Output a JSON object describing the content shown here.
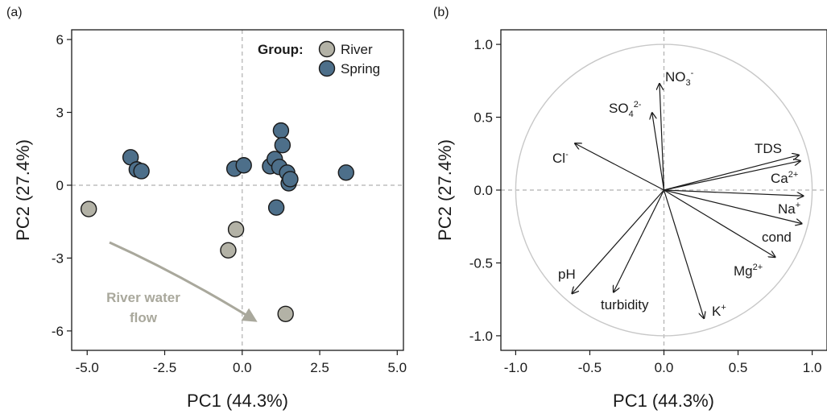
{
  "colors": {
    "river": "#b3b2a6",
    "spring": "#4d6f8a",
    "arrow_gray": "#a9a89c",
    "circle": "#c8c8c8",
    "guide": "#b0b0b0"
  },
  "chart_data": [
    {
      "type": "scatter",
      "panel": "(a)",
      "xlabel": "PC1 (44.3%)",
      "ylabel": "PC2 (27.4%)",
      "xlim": [
        -5.5,
        5.2
      ],
      "ylim": [
        -6.8,
        6.4
      ],
      "xticks": [
        -5.0,
        -2.5,
        0.0,
        2.5,
        5.0
      ],
      "xtick_labels": [
        "-5.0",
        "-2.5",
        "0.0",
        "2.5",
        "5.0"
      ],
      "yticks": [
        -6,
        -3,
        0,
        3,
        6
      ],
      "ytick_labels": [
        "-6",
        "-3",
        "0",
        "3",
        "6"
      ],
      "legend": {
        "title": "Group:",
        "position": "top-right",
        "entries": [
          "River",
          "Spring"
        ]
      },
      "series": [
        {
          "name": "River",
          "points": [
            [
              -4.95,
              -0.98
            ],
            [
              -0.2,
              -1.82
            ],
            [
              -0.45,
              -2.68
            ],
            [
              1.4,
              -5.3
            ]
          ]
        },
        {
          "name": "Spring",
          "points": [
            [
              -3.6,
              1.15
            ],
            [
              -3.4,
              0.65
            ],
            [
              -3.25,
              0.58
            ],
            [
              -0.25,
              0.68
            ],
            [
              0.05,
              0.82
            ],
            [
              0.9,
              0.78
            ],
            [
              1.05,
              1.08
            ],
            [
              1.2,
              0.75
            ],
            [
              1.25,
              2.25
            ],
            [
              1.3,
              1.65
            ],
            [
              1.45,
              0.52
            ],
            [
              1.5,
              0.08
            ],
            [
              1.55,
              0.25
            ],
            [
              1.1,
              -0.92
            ],
            [
              3.35,
              0.52
            ]
          ]
        }
      ],
      "annotation": {
        "lines": [
          "River water",
          "flow"
        ]
      }
    },
    {
      "type": "scatter",
      "panel": "(b)",
      "xlabel": "PC1 (44.3%)",
      "ylabel": "PC2 (27.4%)",
      "xlim": [
        -1.1,
        1.1
      ],
      "ylim": [
        -1.1,
        1.1
      ],
      "xticks": [
        -1.0,
        -0.5,
        0.0,
        0.5,
        1.0
      ],
      "xtick_labels": [
        "-1.0",
        "-0.5",
        "0.0",
        "0.5",
        "1.0"
      ],
      "yticks": [
        -1.0,
        -0.5,
        0.0,
        0.5,
        1.0
      ],
      "ytick_labels": [
        "-1.0",
        "-0.5",
        "0.0",
        "0.5",
        "1.0"
      ],
      "unit_circle": true,
      "vectors": [
        {
          "name": "NO3-",
          "label": "NO",
          "sub": "3",
          "sup": "-",
          "x": -0.03,
          "y": 0.73
        },
        {
          "name": "SO42-",
          "label": "SO",
          "sub": "4",
          "sup": "2-",
          "x": -0.08,
          "y": 0.53
        },
        {
          "name": "Cl-",
          "label": "Cl",
          "sub": "",
          "sup": "-",
          "x": -0.6,
          "y": 0.32
        },
        {
          "name": "TDS",
          "label": "TDS",
          "sub": "",
          "sup": "",
          "x": 0.91,
          "y": 0.24
        },
        {
          "name": "Ca2+",
          "label": "Ca",
          "sub": "",
          "sup": "2+",
          "x": 0.92,
          "y": 0.2
        },
        {
          "name": "Na+",
          "label": "Na",
          "sub": "",
          "sup": "+",
          "x": 0.94,
          "y": -0.04
        },
        {
          "name": "cond",
          "label": "cond",
          "sub": "",
          "sup": "",
          "x": 0.93,
          "y": -0.23
        },
        {
          "name": "Mg2+",
          "label": "Mg",
          "sub": "",
          "sup": "2+",
          "x": 0.75,
          "y": -0.46
        },
        {
          "name": "K+",
          "label": "K",
          "sub": "",
          "sup": "+",
          "x": 0.27,
          "y": -0.88
        },
        {
          "name": "turbidity",
          "label": "turbidity",
          "sub": "",
          "sup": "",
          "x": -0.34,
          "y": -0.7
        },
        {
          "name": "pH",
          "label": "pH",
          "sub": "",
          "sup": "",
          "x": -0.62,
          "y": -0.71
        }
      ]
    }
  ]
}
